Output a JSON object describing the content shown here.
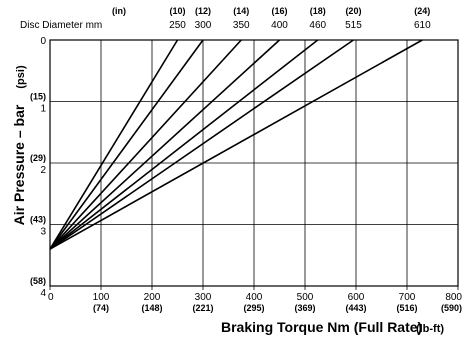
{
  "chart_data": {
    "type": "line",
    "xlabel": "Braking Torque Nm (Full Rate)",
    "xlabel_unit": "(lb-ft)",
    "ylabel": "Air Pressure – bar",
    "ylabel_unit": "(psi)",
    "top_header_unit": "(in)",
    "top_header_label": "Disc Diameter mm",
    "xlim": [
      0,
      800
    ],
    "ylim": [
      0,
      4
    ],
    "y_inverted": true,
    "grid": true,
    "x_ticks": [
      {
        "value": 0,
        "label": "0",
        "sub": ""
      },
      {
        "value": 100,
        "label": "100",
        "sub": "(74)"
      },
      {
        "value": 200,
        "label": "200",
        "sub": "(148)"
      },
      {
        "value": 300,
        "label": "300",
        "sub": "(221)"
      },
      {
        "value": 400,
        "label": "400",
        "sub": "(295)"
      },
      {
        "value": 500,
        "label": "500",
        "sub": "(369)"
      },
      {
        "value": 600,
        "label": "600",
        "sub": "(443)"
      },
      {
        "value": 700,
        "label": "700",
        "sub": "(516)"
      },
      {
        "value": 800,
        "label": "800",
        "sub": "(590)"
      }
    ],
    "y_ticks": [
      {
        "value": 0,
        "label": "0",
        "sub": ""
      },
      {
        "value": 1,
        "label": "1",
        "sub": "(15)"
      },
      {
        "value": 2,
        "label": "2",
        "sub": "(29)"
      },
      {
        "value": 3,
        "label": "3",
        "sub": "(43)"
      },
      {
        "value": 4,
        "label": "4",
        "sub": "(58)"
      }
    ],
    "series": [
      {
        "inch": "(10)",
        "mm": "250",
        "points": [
          [
            0,
            3.4
          ],
          [
            250,
            0
          ]
        ]
      },
      {
        "inch": "(12)",
        "mm": "300",
        "points": [
          [
            0,
            3.4
          ],
          [
            300,
            0
          ]
        ]
      },
      {
        "inch": "(14)",
        "mm": "350",
        "points": [
          [
            0,
            3.4
          ],
          [
            375,
            0
          ]
        ]
      },
      {
        "inch": "(16)",
        "mm": "400",
        "points": [
          [
            0,
            3.4
          ],
          [
            450,
            0
          ]
        ]
      },
      {
        "inch": "(18)",
        "mm": "460",
        "points": [
          [
            0,
            3.4
          ],
          [
            525,
            0
          ]
        ]
      },
      {
        "inch": "(20)",
        "mm": "515",
        "points": [
          [
            0,
            3.4
          ],
          [
            595,
            0
          ]
        ]
      },
      {
        "inch": "(24)",
        "mm": "610",
        "points": [
          [
            0,
            3.4
          ],
          [
            730,
            0
          ]
        ]
      }
    ]
  }
}
